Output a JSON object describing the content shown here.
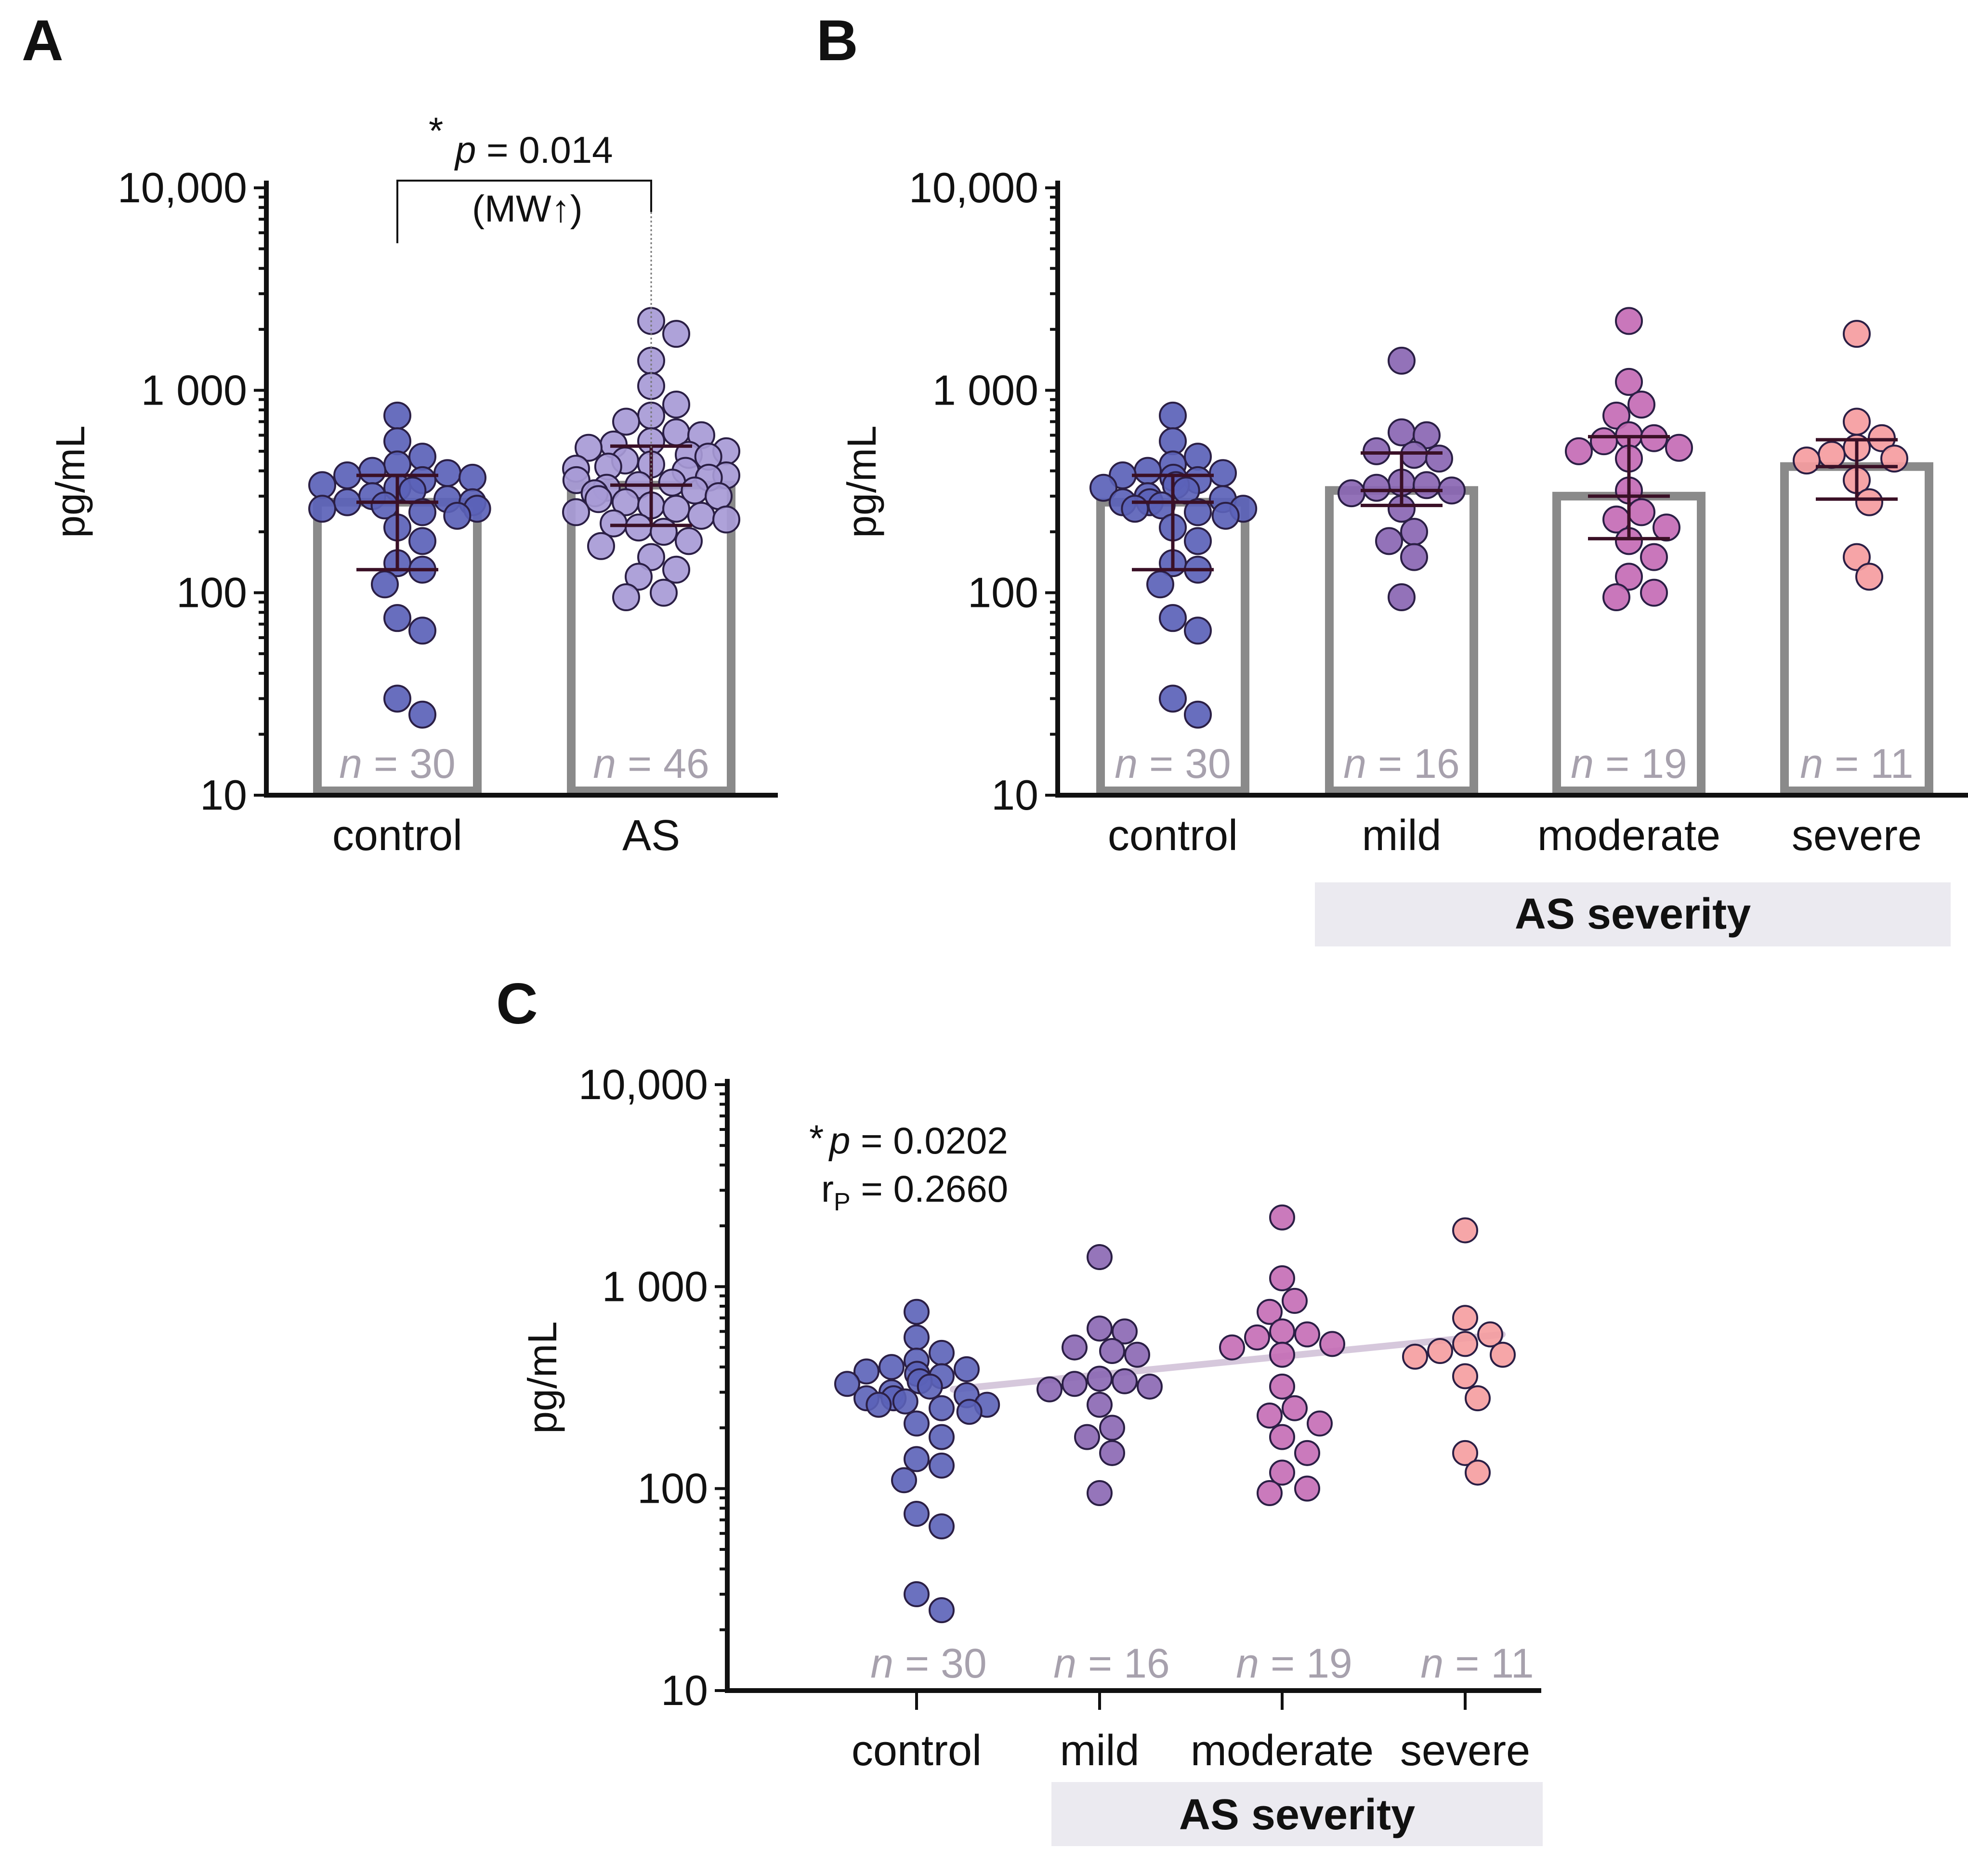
{
  "panels": {
    "A": {
      "label": "A"
    },
    "B": {
      "label": "B"
    },
    "C": {
      "label": "C"
    }
  },
  "colors": {
    "control": "#5b62b8",
    "as": "#a79ad6",
    "mild": "#8a66b3",
    "moderate": "#c46bb5",
    "severe": "#f59c9f",
    "bar": "#8a8a8a",
    "error": "#3a1026",
    "trend": "#d6c8dc",
    "n_text": "#a7a1ad",
    "severity_box": "#ebeaf0"
  },
  "chart_data": [
    {
      "id": "A",
      "type": "bar",
      "yscale": "log",
      "ylabel": "pg/mL",
      "ylim": [
        10,
        10000
      ],
      "yticks": [
        10,
        100,
        1000,
        10000
      ],
      "ytick_labels": [
        "10",
        "100",
        "1 000",
        "10,000"
      ],
      "categories": [
        "control",
        "AS"
      ],
      "bar_values": [
        280,
        340
      ],
      "error_low": [
        130,
        215
      ],
      "error_high": [
        380,
        530
      ],
      "n_labels": [
        "n = 30",
        "n = 46"
      ],
      "points": [
        [
          750,
          560,
          470,
          430,
          400,
          390,
          380,
          370,
          360,
          340,
          330,
          320,
          300,
          290,
          280,
          280,
          270,
          260,
          260,
          250,
          240,
          210,
          180,
          140,
          130,
          110,
          75,
          65,
          30,
          25
        ],
        [
          2200,
          1900,
          1400,
          1050,
          850,
          750,
          700,
          620,
          600,
          560,
          540,
          520,
          500,
          480,
          470,
          450,
          430,
          420,
          410,
          400,
          380,
          370,
          360,
          350,
          340,
          330,
          320,
          310,
          300,
          290,
          280,
          270,
          260,
          250,
          240,
          230,
          220,
          210,
          200,
          180,
          170,
          150,
          130,
          120,
          100,
          95
        ]
      ],
      "significance": {
        "star": "*",
        "p_text": "p",
        "p_value": " = 0.014",
        "test": "(MW↑)"
      }
    },
    {
      "id": "B",
      "type": "bar",
      "yscale": "log",
      "ylabel": "pg/mL",
      "ylim": [
        10,
        10000
      ],
      "yticks": [
        10,
        100,
        1000,
        10000
      ],
      "ytick_labels": [
        "10",
        "100",
        "1 000",
        "10,000"
      ],
      "categories": [
        "control",
        "mild",
        "moderate",
        "severe"
      ],
      "group_label": "AS severity",
      "bar_values": [
        280,
        320,
        300,
        420
      ],
      "error_low": [
        130,
        270,
        185,
        290
      ],
      "error_high": [
        380,
        490,
        590,
        570
      ],
      "n_labels": [
        "n = 30",
        "n = 16",
        "n = 19",
        "n = 11"
      ],
      "points": [
        [
          750,
          560,
          470,
          430,
          400,
          390,
          380,
          370,
          360,
          340,
          330,
          320,
          300,
          290,
          280,
          280,
          270,
          260,
          260,
          250,
          240,
          210,
          180,
          140,
          130,
          110,
          75,
          65,
          30,
          25
        ],
        [
          1400,
          620,
          600,
          500,
          480,
          460,
          350,
          340,
          330,
          320,
          310,
          260,
          200,
          180,
          150,
          95
        ],
        [
          2200,
          1100,
          850,
          750,
          600,
          580,
          560,
          520,
          500,
          460,
          320,
          250,
          230,
          210,
          180,
          150,
          120,
          100,
          95
        ],
        [
          1900,
          700,
          580,
          520,
          480,
          460,
          450,
          360,
          280,
          150,
          120
        ]
      ]
    },
    {
      "id": "C",
      "type": "scatter",
      "yscale": "log",
      "ylabel": "pg/mL",
      "ylim": [
        10,
        10000
      ],
      "yticks": [
        10,
        100,
        1000,
        10000
      ],
      "ytick_labels": [
        "10",
        "100",
        "1 000",
        "10,000"
      ],
      "categories": [
        "control",
        "mild",
        "moderate",
        "severe"
      ],
      "group_label": "AS severity",
      "n_labels": [
        "n = 30",
        "n = 16",
        "n = 19",
        "n = 11"
      ],
      "trend_line": {
        "x": [
          0.2,
          3.2
        ],
        "y": [
          310,
          580
        ]
      },
      "stats": {
        "star": "*",
        "p_text": "p",
        "p_value": " =  0.0202",
        "r_main": "r",
        "r_sub": "P",
        "r_value": " =  0.2660"
      },
      "points": [
        [
          750,
          560,
          470,
          430,
          400,
          390,
          380,
          370,
          360,
          340,
          330,
          320,
          300,
          290,
          280,
          280,
          270,
          260,
          260,
          250,
          240,
          210,
          180,
          140,
          130,
          110,
          75,
          65,
          30,
          25
        ],
        [
          1400,
          620,
          600,
          500,
          480,
          460,
          350,
          340,
          330,
          320,
          310,
          260,
          200,
          180,
          150,
          95
        ],
        [
          2200,
          1100,
          850,
          750,
          600,
          580,
          560,
          520,
          500,
          460,
          320,
          250,
          230,
          210,
          180,
          150,
          120,
          100,
          95
        ],
        [
          1900,
          700,
          580,
          520,
          480,
          460,
          450,
          360,
          280,
          150,
          120
        ]
      ]
    }
  ]
}
